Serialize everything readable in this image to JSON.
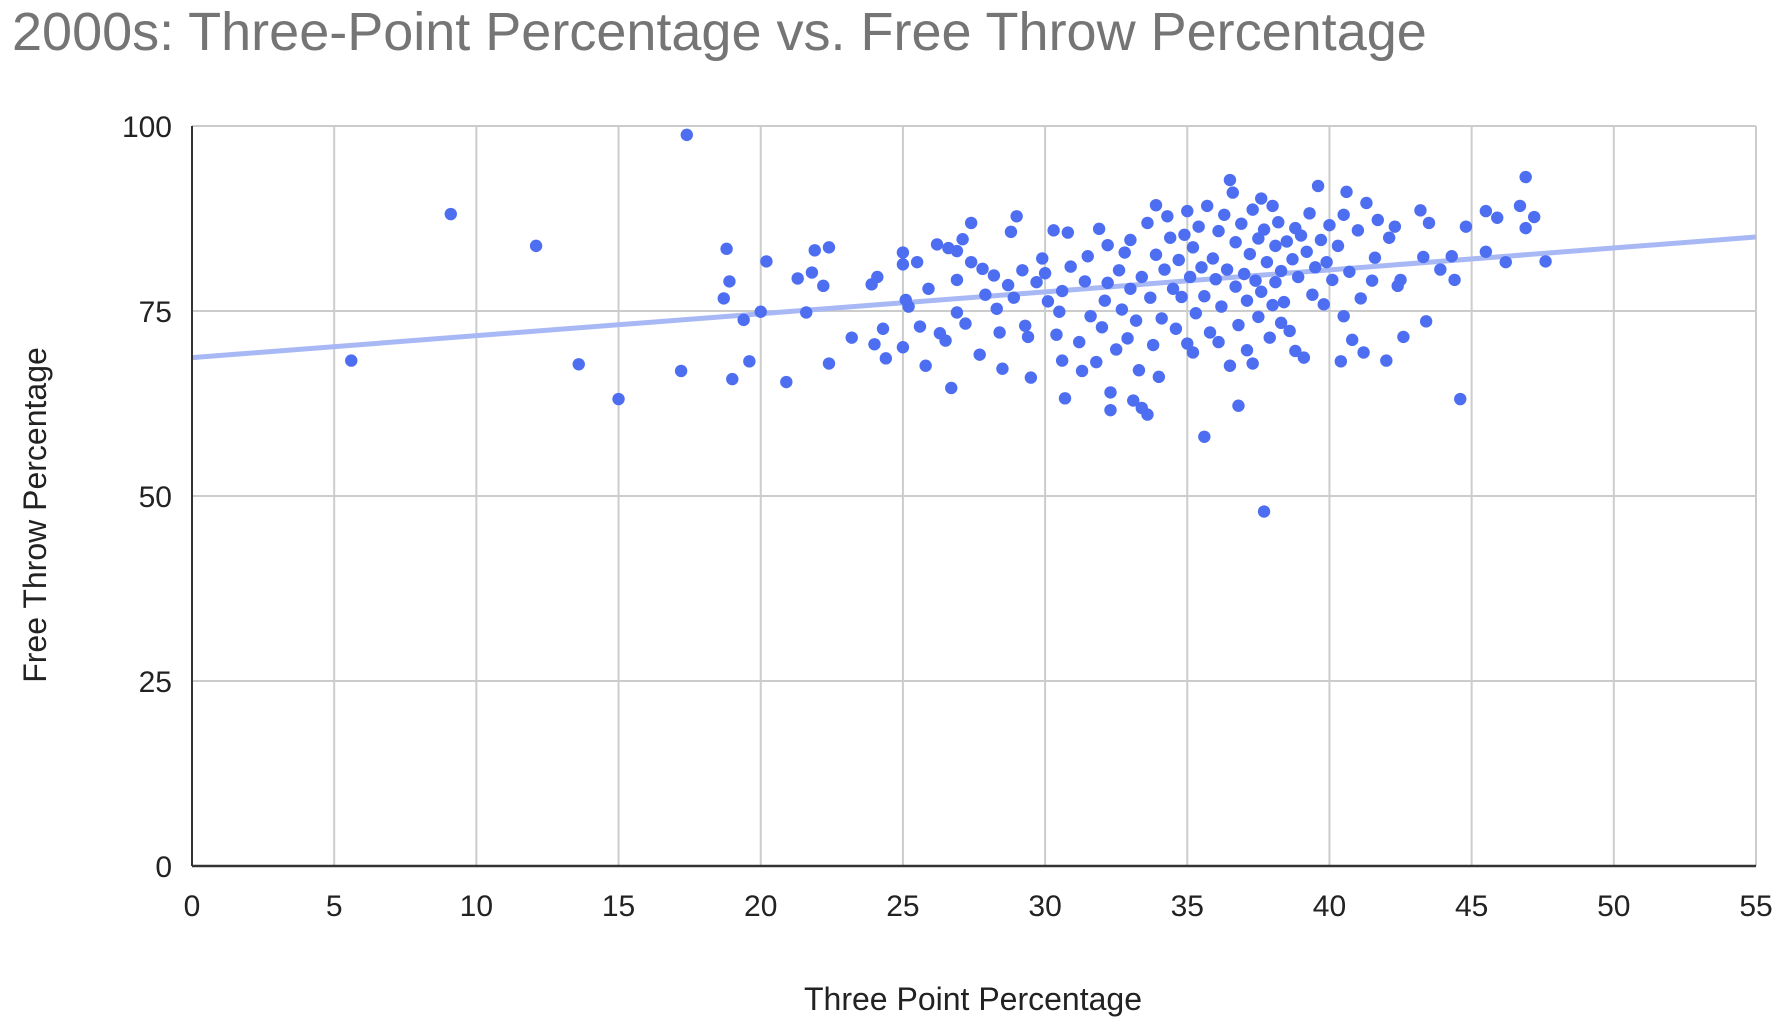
{
  "chart_data": {
    "type": "scatter",
    "title": "2000s: Three-Point Percentage vs. Free Throw Percentage",
    "xlabel": "Three Point Percentage",
    "ylabel": "Free Throw Percentage",
    "xlim": [
      0,
      55
    ],
    "ylim": [
      0,
      100
    ],
    "x_ticks": [
      0,
      5,
      10,
      15,
      20,
      25,
      30,
      35,
      40,
      45,
      50,
      55
    ],
    "y_ticks": [
      0,
      25,
      50,
      75,
      100
    ],
    "grid": true,
    "legend": "none",
    "colors": {
      "points": "#4e6ef2",
      "trendline": "#a7b8f4",
      "grid": "#cccccc",
      "axis": "#333333"
    },
    "trendline": {
      "type": "linear",
      "x": [
        0,
        55
      ],
      "y": [
        68.7,
        85.0
      ]
    },
    "points": [
      [
        5.6,
        68.3
      ],
      [
        9.1,
        88.1
      ],
      [
        12.1,
        83.8
      ],
      [
        13.6,
        67.8
      ],
      [
        15.0,
        63.1
      ],
      [
        17.4,
        98.8
      ],
      [
        17.2,
        66.9
      ],
      [
        18.7,
        76.7
      ],
      [
        18.8,
        83.4
      ],
      [
        18.9,
        79.0
      ],
      [
        19.0,
        65.8
      ],
      [
        19.4,
        73.8
      ],
      [
        19.6,
        68.2
      ],
      [
        20.0,
        74.9
      ],
      [
        20.2,
        81.7
      ],
      [
        20.9,
        65.4
      ],
      [
        21.3,
        79.4
      ],
      [
        21.6,
        74.8
      ],
      [
        21.8,
        80.2
      ],
      [
        21.9,
        83.2
      ],
      [
        22.2,
        78.4
      ],
      [
        22.4,
        83.6
      ],
      [
        22.4,
        67.9
      ],
      [
        23.2,
        71.4
      ],
      [
        23.9,
        78.6
      ],
      [
        24.1,
        79.6
      ],
      [
        24.0,
        70.5
      ],
      [
        24.3,
        72.6
      ],
      [
        24.4,
        68.6
      ],
      [
        25.0,
        82.9
      ],
      [
        25.0,
        81.3
      ],
      [
        25.1,
        76.5
      ],
      [
        25.0,
        70.1
      ],
      [
        25.2,
        75.6
      ],
      [
        25.5,
        81.6
      ],
      [
        25.6,
        72.9
      ],
      [
        25.8,
        67.6
      ],
      [
        25.9,
        78.0
      ],
      [
        26.2,
        84.0
      ],
      [
        26.3,
        72.0
      ],
      [
        26.5,
        71.0
      ],
      [
        26.7,
        64.6
      ],
      [
        26.6,
        83.5
      ],
      [
        26.9,
        79.2
      ],
      [
        26.9,
        83.1
      ],
      [
        26.9,
        74.8
      ],
      [
        27.1,
        84.7
      ],
      [
        27.2,
        73.3
      ],
      [
        27.4,
        86.9
      ],
      [
        27.4,
        81.6
      ],
      [
        27.7,
        69.1
      ],
      [
        27.8,
        80.7
      ],
      [
        27.9,
        77.2
      ],
      [
        28.2,
        79.8
      ],
      [
        28.3,
        75.3
      ],
      [
        28.4,
        72.1
      ],
      [
        28.5,
        67.2
      ],
      [
        28.7,
        78.5
      ],
      [
        28.8,
        85.7
      ],
      [
        28.9,
        76.8
      ],
      [
        29.0,
        87.8
      ],
      [
        29.2,
        80.5
      ],
      [
        29.3,
        73.0
      ],
      [
        29.4,
        71.5
      ],
      [
        29.5,
        66.0
      ],
      [
        29.7,
        78.9
      ],
      [
        29.9,
        82.1
      ],
      [
        30.0,
        80.1
      ],
      [
        30.1,
        76.3
      ],
      [
        30.3,
        85.9
      ],
      [
        30.4,
        71.8
      ],
      [
        30.5,
        74.9
      ],
      [
        30.6,
        68.3
      ],
      [
        30.6,
        77.7
      ],
      [
        30.7,
        63.2
      ],
      [
        30.8,
        85.6
      ],
      [
        30.9,
        81.0
      ],
      [
        31.2,
        70.8
      ],
      [
        31.3,
        66.9
      ],
      [
        31.4,
        79.0
      ],
      [
        31.5,
        82.4
      ],
      [
        31.6,
        74.3
      ],
      [
        31.8,
        68.1
      ],
      [
        31.9,
        86.1
      ],
      [
        32.0,
        72.8
      ],
      [
        32.1,
        76.4
      ],
      [
        32.2,
        78.8
      ],
      [
        32.2,
        83.9
      ],
      [
        32.3,
        64.0
      ],
      [
        32.3,
        61.6
      ],
      [
        32.5,
        69.8
      ],
      [
        32.6,
        80.5
      ],
      [
        32.7,
        75.2
      ],
      [
        32.8,
        82.9
      ],
      [
        32.9,
        71.3
      ],
      [
        33.0,
        78.0
      ],
      [
        33.0,
        84.6
      ],
      [
        33.1,
        62.9
      ],
      [
        33.2,
        73.7
      ],
      [
        33.3,
        67.0
      ],
      [
        33.4,
        79.6
      ],
      [
        33.4,
        61.9
      ],
      [
        33.6,
        61.0
      ],
      [
        33.6,
        86.9
      ],
      [
        33.7,
        76.8
      ],
      [
        33.8,
        70.4
      ],
      [
        33.9,
        89.3
      ],
      [
        33.9,
        82.6
      ],
      [
        34.0,
        66.1
      ],
      [
        34.1,
        74.0
      ],
      [
        34.2,
        80.6
      ],
      [
        34.3,
        87.8
      ],
      [
        34.4,
        84.9
      ],
      [
        34.5,
        78.0
      ],
      [
        34.6,
        72.6
      ],
      [
        34.7,
        81.9
      ],
      [
        34.8,
        76.9
      ],
      [
        34.9,
        85.3
      ],
      [
        35.0,
        70.6
      ],
      [
        35.0,
        88.5
      ],
      [
        35.1,
        79.6
      ],
      [
        35.2,
        83.6
      ],
      [
        35.2,
        69.4
      ],
      [
        35.3,
        74.7
      ],
      [
        35.4,
        86.4
      ],
      [
        35.5,
        80.9
      ],
      [
        35.6,
        77.0
      ],
      [
        35.6,
        58.0
      ],
      [
        35.7,
        89.2
      ],
      [
        35.8,
        72.1
      ],
      [
        35.9,
        82.1
      ],
      [
        36.0,
        79.3
      ],
      [
        36.1,
        85.8
      ],
      [
        36.1,
        70.8
      ],
      [
        36.2,
        75.6
      ],
      [
        36.3,
        88.0
      ],
      [
        36.4,
        80.6
      ],
      [
        36.5,
        67.6
      ],
      [
        36.5,
        92.7
      ],
      [
        36.6,
        91.0
      ],
      [
        36.7,
        78.3
      ],
      [
        36.7,
        84.3
      ],
      [
        36.8,
        73.1
      ],
      [
        36.8,
        62.2
      ],
      [
        36.9,
        86.8
      ],
      [
        37.0,
        80.0
      ],
      [
        37.1,
        76.4
      ],
      [
        37.1,
        69.7
      ],
      [
        37.2,
        82.7
      ],
      [
        37.3,
        88.7
      ],
      [
        37.3,
        67.9
      ],
      [
        37.4,
        79.1
      ],
      [
        37.5,
        84.8
      ],
      [
        37.5,
        74.2
      ],
      [
        37.6,
        90.2
      ],
      [
        37.6,
        77.6
      ],
      [
        37.7,
        86.0
      ],
      [
        37.7,
        47.9
      ],
      [
        37.8,
        81.6
      ],
      [
        37.9,
        71.4
      ],
      [
        38.0,
        89.2
      ],
      [
        38.0,
        75.8
      ],
      [
        38.1,
        83.8
      ],
      [
        38.1,
        78.9
      ],
      [
        38.2,
        87.0
      ],
      [
        38.3,
        73.4
      ],
      [
        38.3,
        80.4
      ],
      [
        38.4,
        76.2
      ],
      [
        38.5,
        84.4
      ],
      [
        38.6,
        72.3
      ],
      [
        38.7,
        82.0
      ],
      [
        38.8,
        86.2
      ],
      [
        38.8,
        69.6
      ],
      [
        38.9,
        79.6
      ],
      [
        39.0,
        85.2
      ],
      [
        39.1,
        68.7
      ],
      [
        39.2,
        83.0
      ],
      [
        39.3,
        88.2
      ],
      [
        39.4,
        77.2
      ],
      [
        39.5,
        80.9
      ],
      [
        39.6,
        91.9
      ],
      [
        39.7,
        84.6
      ],
      [
        39.8,
        75.9
      ],
      [
        39.9,
        81.6
      ],
      [
        40.0,
        86.6
      ],
      [
        40.1,
        79.2
      ],
      [
        40.3,
        83.8
      ],
      [
        40.4,
        68.2
      ],
      [
        40.5,
        88.0
      ],
      [
        40.5,
        74.3
      ],
      [
        40.6,
        91.1
      ],
      [
        40.7,
        80.3
      ],
      [
        40.8,
        71.1
      ],
      [
        41.0,
        85.9
      ],
      [
        41.1,
        76.7
      ],
      [
        41.2,
        69.4
      ],
      [
        41.3,
        89.6
      ],
      [
        41.5,
        79.1
      ],
      [
        41.6,
        82.2
      ],
      [
        41.7,
        87.3
      ],
      [
        42.0,
        68.3
      ],
      [
        42.1,
        84.9
      ],
      [
        42.3,
        86.4
      ],
      [
        42.4,
        78.4
      ],
      [
        42.5,
        79.2
      ],
      [
        42.6,
        71.5
      ],
      [
        43.2,
        88.6
      ],
      [
        43.3,
        82.3
      ],
      [
        43.4,
        73.6
      ],
      [
        43.5,
        86.9
      ],
      [
        43.9,
        80.6
      ],
      [
        44.3,
        82.4
      ],
      [
        44.4,
        79.2
      ],
      [
        44.6,
        63.1
      ],
      [
        44.8,
        86.4
      ],
      [
        45.5,
        88.5
      ],
      [
        45.5,
        83.0
      ],
      [
        45.9,
        87.6
      ],
      [
        46.2,
        81.6
      ],
      [
        46.7,
        89.2
      ],
      [
        46.9,
        86.2
      ],
      [
        46.9,
        93.1
      ],
      [
        47.2,
        87.7
      ],
      [
        47.6,
        81.7
      ]
    ]
  }
}
